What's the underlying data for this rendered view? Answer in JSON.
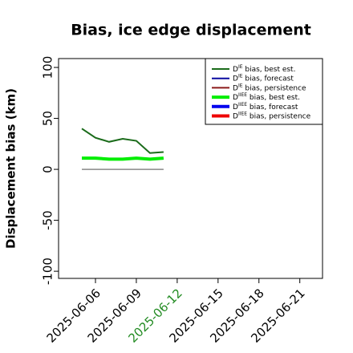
{
  "chart_data": {
    "type": "line",
    "title": "Bias, ice edge displacement",
    "y_label": "Displacement bias (km)",
    "x": [
      "2025-06-05",
      "2025-06-06",
      "2025-06-07",
      "2025-06-08",
      "2025-06-09",
      "2025-06-10",
      "2025-06-11"
    ],
    "series": [
      {
        "name": "DIE bias, best est.",
        "color": "#1a6b1a",
        "width": 2,
        "values": [
          40,
          31,
          27,
          30,
          28,
          16,
          17
        ]
      },
      {
        "name": "DIE bias, forecast",
        "color": "#0a0aa0",
        "width": 2,
        "values": [
          null,
          null,
          null,
          null,
          null,
          null,
          null
        ]
      },
      {
        "name": "DIE bias, persistence",
        "color": "#8b1a1a",
        "width": 2,
        "values": [
          null,
          null,
          null,
          null,
          null,
          null,
          null
        ]
      },
      {
        "name": "DIIEE bias, best est.",
        "color": "#00ee00",
        "width": 4,
        "values": [
          11,
          11,
          10,
          10,
          11,
          10,
          11
        ]
      },
      {
        "name": "DIIEE bias, forecast",
        "color": "#0000ee",
        "width": 4,
        "values": [
          null,
          null,
          null,
          null,
          null,
          null,
          null
        ]
      },
      {
        "name": "DIIEE bias, persistence",
        "color": "#ee0000",
        "width": 4,
        "values": [
          null,
          null,
          null,
          null,
          null,
          null,
          null
        ]
      }
    ],
    "xlim": [
      "2025-06-03T07:00",
      "2025-06-22T16:00"
    ],
    "xticks": [
      "2025-06-06",
      "2025-06-09",
      "2025-06-12",
      "2025-06-15",
      "2025-06-18",
      "2025-06-21"
    ],
    "highlight_xtick": "2025-06-12",
    "highlight_color": "#228b22",
    "ylim": [
      -107,
      108.7
    ],
    "yticks": [
      -100,
      -50,
      0,
      50,
      100
    ],
    "legend": "upper right"
  }
}
